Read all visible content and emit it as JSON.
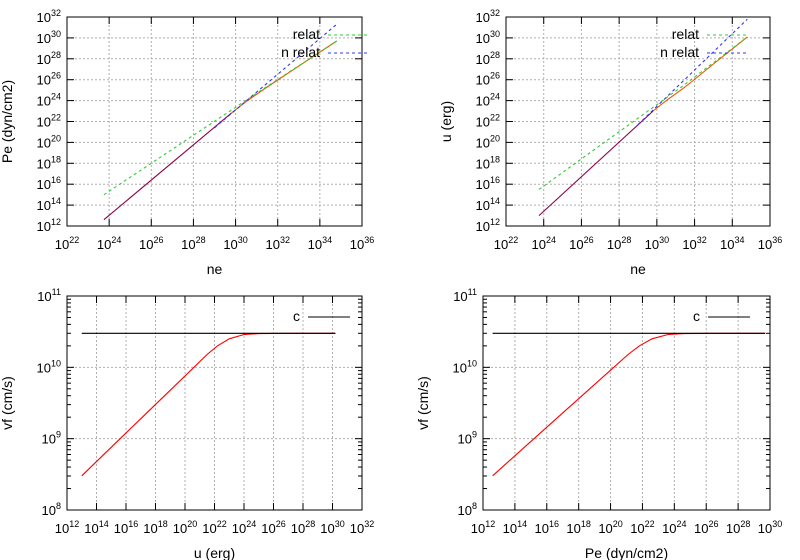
{
  "chart_data": [
    {
      "type": "line",
      "xlabel": "ne",
      "ylabel": "Pe (dyn/cm2)",
      "xscale": "log",
      "yscale": "log",
      "x_exp_range": [
        22,
        36
      ],
      "y_exp_range": [
        12,
        32
      ],
      "x_tick_exps": [
        22,
        24,
        26,
        28,
        30,
        32,
        34,
        36
      ],
      "y_tick_exps": [
        12,
        14,
        16,
        18,
        20,
        22,
        24,
        26,
        28,
        30,
        32
      ],
      "grid": true,
      "legend_position": "top-right",
      "series": [
        {
          "name": "",
          "color": "#8b0045",
          "dash": "",
          "points": [
            [
              23.75,
              12.6
            ],
            [
              29.8,
              22.8
            ]
          ]
        },
        {
          "name": "",
          "color": "#ee5500",
          "dash": "",
          "points": [
            [
              29.8,
              22.8
            ],
            [
              30.5,
              23.9
            ],
            [
              31.5,
              25.3
            ],
            [
              33,
              27.3
            ],
            [
              34.8,
              29.7
            ]
          ]
        },
        {
          "name": "relat",
          "color": "#33cc33",
          "dash": "3,3",
          "points": [
            [
              23.75,
              15.0
            ],
            [
              31.3,
              25.1
            ],
            [
              34.8,
              29.7
            ]
          ]
        },
        {
          "name": "n relat",
          "color": "#3333ff",
          "dash": "3,3",
          "points": [
            [
              29.0,
              21.4
            ],
            [
              34.8,
              31.3
            ]
          ]
        }
      ]
    },
    {
      "type": "line",
      "xlabel": "ne",
      "ylabel": "u (erg)",
      "xscale": "log",
      "yscale": "log",
      "x_exp_range": [
        22,
        36
      ],
      "y_exp_range": [
        12,
        32
      ],
      "x_tick_exps": [
        22,
        24,
        26,
        28,
        30,
        32,
        34,
        36
      ],
      "y_tick_exps": [
        12,
        14,
        16,
        18,
        20,
        22,
        24,
        26,
        28,
        30,
        32
      ],
      "grid": true,
      "legend_position": "top-right",
      "series": [
        {
          "name": "",
          "color": "#8b0045",
          "dash": "",
          "points": [
            [
              23.75,
              13.0
            ],
            [
              29.8,
              23.0
            ]
          ]
        },
        {
          "name": "",
          "color": "#ee5500",
          "dash": "",
          "points": [
            [
              29.8,
              23.0
            ],
            [
              30.5,
              24.0
            ],
            [
              31.5,
              25.3
            ],
            [
              33,
              27.5
            ],
            [
              34.8,
              30.1
            ]
          ]
        },
        {
          "name": "relat",
          "color": "#33cc33",
          "dash": "3,3",
          "points": [
            [
              23.75,
              15.5
            ],
            [
              31.3,
              25.3
            ],
            [
              34.8,
              30.1
            ]
          ]
        },
        {
          "name": "n relat",
          "color": "#3333ff",
          "dash": "3,3",
          "points": [
            [
              29.0,
              21.7
            ],
            [
              34.8,
              31.8
            ]
          ]
        }
      ]
    },
    {
      "type": "line",
      "xlabel": "u (erg)",
      "ylabel": "vf (cm/s)",
      "xscale": "log",
      "yscale": "log",
      "x_exp_range": [
        12,
        32
      ],
      "y_exp_range": [
        8,
        11
      ],
      "x_tick_exps": [
        12,
        14,
        16,
        18,
        20,
        22,
        24,
        26,
        28,
        30,
        32
      ],
      "y_tick_exps": [
        8,
        9,
        10,
        11
      ],
      "grid": true,
      "legend_position": "top-right",
      "series": [
        {
          "name": "",
          "color": "#ff0000",
          "dash": "",
          "points": [
            [
              13.0,
              8.48
            ],
            [
              15.0,
              8.88
            ],
            [
              17.0,
              9.28
            ],
            [
              19.0,
              9.68
            ],
            [
              20.5,
              9.98
            ],
            [
              21.5,
              10.18
            ],
            [
              22.2,
              10.3
            ],
            [
              23.0,
              10.4
            ],
            [
              24.0,
              10.46
            ],
            [
              25.0,
              10.473
            ],
            [
              27.0,
              10.477
            ],
            [
              30.2,
              10.477
            ]
          ]
        },
        {
          "name": "c",
          "color": "#000000",
          "dash": "",
          "points": [
            [
              13.0,
              10.477
            ],
            [
              30.2,
              10.477
            ]
          ]
        }
      ]
    },
    {
      "type": "line",
      "xlabel": "Pe (dyn/cm2)",
      "ylabel": "vf (cm/s)",
      "xscale": "log",
      "yscale": "log",
      "x_exp_range": [
        12,
        30
      ],
      "y_exp_range": [
        8,
        11
      ],
      "x_tick_exps": [
        12,
        14,
        16,
        18,
        20,
        22,
        24,
        26,
        28,
        30
      ],
      "y_tick_exps": [
        8,
        9,
        10,
        11
      ],
      "grid": true,
      "legend_position": "top-right",
      "series": [
        {
          "name": "",
          "color": "#ff0000",
          "dash": "",
          "points": [
            [
              12.6,
              8.48
            ],
            [
              14.6,
              8.88
            ],
            [
              16.6,
              9.28
            ],
            [
              18.6,
              9.68
            ],
            [
              20.1,
              9.98
            ],
            [
              21.1,
              10.18
            ],
            [
              21.8,
              10.3
            ],
            [
              22.6,
              10.4
            ],
            [
              23.6,
              10.46
            ],
            [
              24.6,
              10.473
            ],
            [
              26.6,
              10.477
            ],
            [
              29.7,
              10.477
            ]
          ]
        },
        {
          "name": "c",
          "color": "#000000",
          "dash": "",
          "points": [
            [
              12.6,
              10.477
            ],
            [
              29.7,
              10.477
            ]
          ]
        }
      ]
    }
  ]
}
